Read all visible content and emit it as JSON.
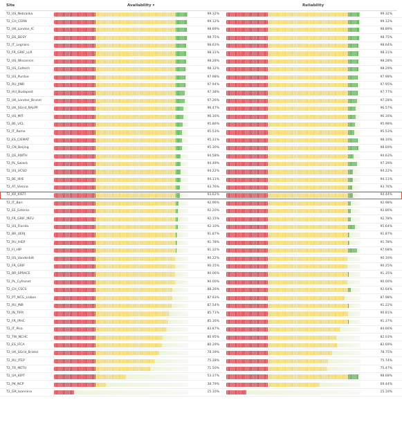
{
  "header": {
    "site_label": "Site",
    "availability_label": "Availability ▾",
    "reliability_label": "Reliability"
  },
  "highlight_site": "T2_KR_KISTI",
  "rows": [
    {
      "site": "T2_US_Nebraska",
      "availability": "99.32%",
      "reliability": "99.32%"
    },
    {
      "site": "T2_CH_CERN",
      "availability": "99.12%",
      "reliability": "99.12%"
    },
    {
      "site": "T2_UK_London_IC",
      "availability": "98.89%",
      "reliability": "98.89%"
    },
    {
      "site": "T2_DE_DESY",
      "availability": "98.75%",
      "reliability": "98.75%"
    },
    {
      "site": "T2_IT_Legnaro",
      "availability": "98.63%",
      "reliability": "98.64%"
    },
    {
      "site": "T2_FR_GRIF_LLR",
      "availability": "98.31%",
      "reliability": "98.31%"
    },
    {
      "site": "T2_US_Wisconsin",
      "availability": "98.28%",
      "reliability": "98.28%"
    },
    {
      "site": "T2_US_Caltech",
      "availability": "98.12%",
      "reliability": "98.29%"
    },
    {
      "site": "T2_US_Purdue",
      "availability": "97.98%",
      "reliability": "97.98%"
    },
    {
      "site": "T2_RU_JINR",
      "availability": "97.94%",
      "reliability": "97.95%"
    },
    {
      "site": "T2_HU_Budapest",
      "availability": "97.38%",
      "reliability": "97.77%"
    },
    {
      "site": "T2_UK_London_Brunel",
      "availability": "97.26%",
      "reliability": "97.28%"
    },
    {
      "site": "T2_UK_SGrid_RALPP",
      "availability": "96.47%",
      "reliability": "96.57%"
    },
    {
      "site": "T2_US_MIT",
      "availability": "96.16%",
      "reliability": "96.16%"
    },
    {
      "site": "T2_BE_UCL",
      "availability": "95.86%",
      "reliability": "95.98%"
    },
    {
      "site": "T2_IT_Rome",
      "availability": "95.53%",
      "reliability": "95.53%"
    },
    {
      "site": "T2_ES_CIEMAT",
      "availability": "95.31%",
      "reliability": "98.10%"
    },
    {
      "site": "T2_CN_Beijing",
      "availability": "95.30%",
      "reliability": "98.69%"
    },
    {
      "site": "T2_DE_RWTH",
      "availability": "94.58%",
      "reliability": "94.63%"
    },
    {
      "site": "T2_PL_Swierk",
      "availability": "94.49%",
      "reliability": "97.39%"
    },
    {
      "site": "T2_US_UCSD",
      "availability": "94.22%",
      "reliability": "94.22%"
    },
    {
      "site": "T2_BE_IIHE",
      "availability": "94.11%",
      "reliability": "94.11%"
    },
    {
      "site": "T2_AT_Vienna",
      "availability": "93.76%",
      "reliability": "93.76%"
    },
    {
      "site": "T2_KR_KISTI",
      "availability": "93.62%",
      "reliability": "94.44%"
    },
    {
      "site": "T2_IT_Bari",
      "availability": "92.96%",
      "reliability": "92.98%"
    },
    {
      "site": "T2_EE_Estonia",
      "availability": "92.20%",
      "reliability": "92.86%"
    },
    {
      "site": "T2_FR_GRIF_IRFU",
      "availability": "92.15%",
      "reliability": "92.78%"
    },
    {
      "site": "T2_US_Florida",
      "availability": "92.10%",
      "reliability": "95.64%"
    },
    {
      "site": "T2_BR_UERJ",
      "availability": "91.87%",
      "reliability": "91.87%"
    },
    {
      "site": "T2_RU_IHEP",
      "availability": "91.78%",
      "reliability": "91.78%"
    },
    {
      "site": "T2_FI_HIP",
      "availability": "91.32%",
      "reliability": "97.68%"
    },
    {
      "site": "T2_US_Vanderbilt",
      "availability": "90.22%",
      "reliability": "90.30%"
    },
    {
      "site": "T2_FR_GRIF",
      "availability": "90.15%",
      "reliability": "90.25%"
    },
    {
      "site": "T2_BR_SPRACE",
      "availability": "90.06%",
      "reliability": "91.35%"
    },
    {
      "site": "T2_PL_Cyfronet",
      "availability": "90.00%",
      "reliability": "90.00%"
    },
    {
      "site": "T2_CH_CSCS",
      "availability": "88.26%",
      "reliability": "92.64%"
    },
    {
      "site": "T2_PT_NCG_Lisbon",
      "availability": "87.93%",
      "reliability": "87.98%"
    },
    {
      "site": "T2_RU_INR",
      "availability": "87.54%",
      "reliability": "91.22%"
    },
    {
      "site": "T2_IN_TIFR",
      "availability": "85.71%",
      "reliability": "90.81%"
    },
    {
      "site": "T2_FR_IPHC",
      "availability": "85.16%",
      "reliability": "91.37%"
    },
    {
      "site": "T2_IT_Pisa",
      "availability": "83.87%",
      "reliability": "84.66%"
    },
    {
      "site": "T2_TW_NCHC",
      "availability": "80.95%",
      "reliability": "82.03%"
    },
    {
      "site": "T2_ES_IFCA",
      "availability": "80.29%",
      "reliability": "82.69%"
    },
    {
      "site": "T2_UK_SGrid_Bristol",
      "availability": "78.39%",
      "reliability": "78.75%"
    },
    {
      "site": "T2_RU_ITEP",
      "availability": "75.28%",
      "reliability": "75.74%"
    },
    {
      "site": "T2_TR_METU",
      "availability": "71.50%",
      "reliability": "75.47%"
    },
    {
      "site": "T2_UA_KIPT",
      "availability": "53.37%",
      "reliability": "98.68%"
    },
    {
      "site": "T2_PK_NCP",
      "availability": "38.79%",
      "reliability": "69.44%"
    },
    {
      "site": "T2_GR_Ioannina",
      "availability": "15.10%",
      "reliability": "15.10%"
    }
  ],
  "colors": {
    "bad": "#d6505a",
    "warn": "#f1da74",
    "good": "#62b35b",
    "highlight": "#d9463a"
  }
}
